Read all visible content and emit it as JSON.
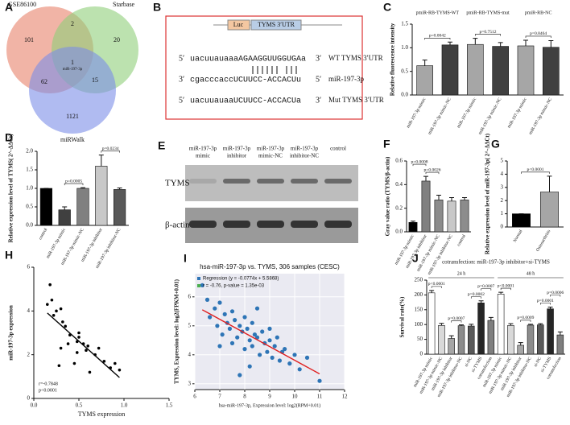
{
  "venn": {
    "panel": "A",
    "sets": [
      "GSE86100",
      "Starbase",
      "miRWalk"
    ],
    "regions": [
      101,
      2,
      20,
      1,
      62,
      15,
      1121
    ],
    "center_label": "miR-197-3p"
  },
  "sequence": {
    "panel": "B",
    "luc": "Luc",
    "utr": "TYMS 3′UTR",
    "rows": [
      {
        "left": "5′",
        "seq": "uacuuauaaaAGAAGGUUGGUGAa",
        "right": "3′",
        "name": "WT TYMS 3′UTR"
      },
      {
        "left": "3′",
        "seq": "cgacccaccUCUUCC-ACCACUu",
        "right": "5′",
        "name": "miR-197-3p"
      },
      {
        "left": "5′",
        "seq": "uacuuauaaUCUUCC-ACCACUa",
        "right": "3′",
        "name": "Mut TYMS 3′UTR"
      }
    ]
  },
  "blot": {
    "panel": "E",
    "lanes": [
      [
        "miR-197-3p",
        "mimic"
      ],
      [
        "miR-197-3p",
        "inhibitor"
      ],
      [
        "miR-197-3p",
        "mimic-NC"
      ],
      [
        "miR-197-3p",
        "inhibitor-NC"
      ],
      [
        "control"
      ]
    ],
    "rows": [
      "TYMS",
      "β-actin"
    ]
  },
  "chart_data": [
    {
      "type": "bar",
      "panel": "C",
      "y_label": "Relative fluorescence intensity",
      "group_labels": [
        "pmiR-RB-TYMS-WT",
        "pmiR-RB-TYMS-mut",
        "pmiR-RB-NC"
      ],
      "categories": [
        "miR-197-3p mimic",
        "miR-197-3p mimic-NC",
        "miR-197-3p mimic",
        "miR-197-3p mimic-NC",
        "miR-197-3p mimic",
        "miR-197-3p mimic-NC"
      ],
      "values": [
        0.62,
        1.06,
        1.07,
        1.03,
        1.04,
        1.01
      ],
      "errors": [
        0.12,
        0.06,
        0.13,
        0.08,
        0.12,
        0.14
      ],
      "colors": [
        "#a6a6a6",
        "#404040",
        "#a6a6a6",
        "#404040",
        "#a6a6a6",
        "#404040"
      ],
      "annotations": [
        "p=0.0042",
        "p=0.7512",
        "p=0.8464"
      ],
      "ylim": [
        0,
        1.5
      ],
      "yticks": [
        {
          "value": 0,
          "label": "0.0"
        },
        0.5,
        {
          "value": 1,
          "label": "1.0"
        },
        1.5
      ]
    },
    {
      "type": "bar",
      "panel": "D",
      "y_label": "Relative expression level of TYMS( 2^-ΔΔCt)",
      "categories": [
        "control",
        "miR-197-3p mimic",
        "miR-197-3p mimic-NC",
        "miR-197-3p inhibitor",
        "miR-197-3p inhibitor-NC"
      ],
      "values": [
        1.0,
        0.42,
        1.0,
        1.6,
        0.97
      ],
      "errors": [
        0,
        0.08,
        0.02,
        0.3,
        0.04
      ],
      "colors": [
        "#000000",
        "#404040",
        "#808080",
        "#c8c8c8",
        "#595959"
      ],
      "annotations": [
        "p=0.0005",
        "p=0.0234"
      ],
      "ylim": [
        0,
        2
      ],
      "yticks": [
        {
          "value": 0,
          "label": "0.0"
        },
        0.5,
        {
          "value": 1,
          "label": "1.0"
        },
        1.5,
        {
          "value": 2,
          "label": "2.0"
        }
      ]
    },
    {
      "type": "bar",
      "panel": "F",
      "y_label": "Gray value ratio (TYMS/β-actin)",
      "categories": [
        "miR-197-3p mimic",
        "miR-197-3p inhibitor",
        "miR-197-3p mimic-NC",
        "miR-197-3p inhibitor-NC",
        "control"
      ],
      "values": [
        0.08,
        0.43,
        0.27,
        0.26,
        0.27
      ],
      "errors": [
        0.01,
        0.04,
        0.04,
        0.03,
        0.02
      ],
      "colors": [
        "#000000",
        "#808080",
        "#8c8c8c",
        "#c8c8c8",
        "#8c8c8c"
      ],
      "annotations": [
        "p=0.0008",
        "p=0.0026"
      ],
      "ylim": [
        0,
        0.6
      ],
      "yticks": [
        {
          "value": 0,
          "label": "0.0"
        },
        0.2,
        0.4,
        0.6
      ]
    },
    {
      "type": "bar",
      "panel": "G",
      "y_label": "Relative expression level of miR-197-3p( 2^-ΔΔCt)",
      "categories": [
        "Normal",
        "Osteoarthritis"
      ],
      "values": [
        1.0,
        2.65
      ],
      "errors": [
        0,
        1.2
      ],
      "colors": [
        "#000000",
        "#a6a6a6"
      ],
      "annotations": [
        "p<0.0001"
      ],
      "ylim": [
        0,
        5
      ],
      "yticks": [
        0,
        1,
        2,
        3,
        4,
        5
      ]
    },
    {
      "type": "scatter",
      "panel": "H",
      "x_label": "TYMS expression",
      "y_label": "miR-197-3p expression",
      "color": "#000000",
      "line_color": "#000000",
      "x": [
        0.15,
        0.18,
        0.2,
        0.22,
        0.25,
        0.28,
        0.3,
        0.32,
        0.35,
        0.38,
        0.4,
        0.45,
        0.48,
        0.5,
        0.5,
        0.55,
        0.58,
        0.6,
        0.62,
        0.68,
        0.72,
        0.78,
        0.85,
        0.9,
        0.95,
        0.3,
        0.48
      ],
      "y": [
        4.3,
        5.2,
        4.5,
        3.8,
        4.0,
        1.5,
        4.1,
        3.5,
        3.3,
        2.5,
        2.9,
        1.6,
        2.6,
        2.8,
        3.0,
        2.5,
        2.2,
        2.4,
        1.2,
        2.0,
        2.3,
        1.7,
        1.4,
        1.6,
        1.3,
        2.3,
        2.1
      ],
      "annotations": [
        "r=-0.7848",
        "p<0.0001"
      ],
      "xlim": [
        0,
        1.5
      ],
      "xticks": [
        {
          "value": 0,
          "label": "0.0"
        },
        0.5,
        {
          "value": 1,
          "label": "1.0"
        },
        1.5
      ],
      "ylim": [
        0,
        6
      ],
      "yticks": [
        0,
        2,
        4,
        6
      ],
      "grid": false
    },
    {
      "type": "scatter",
      "panel": "I",
      "title": "hsa-miR-197-3p vs. TYMS, 306 samples (CESC)",
      "x_label": "hsa-miR-197-3p, Expression level: log2(RPM+0.01)",
      "y_label": "TYMS, Expression level: log2(FPKM+0.01)",
      "color": "#2e75b6",
      "line_color": "#e02020",
      "x": [
        6.3,
        6.5,
        6.6,
        6.8,
        6.9,
        7.0,
        7.1,
        7.2,
        7.3,
        7.4,
        7.5,
        7.5,
        7.6,
        7.7,
        7.8,
        7.9,
        8.0,
        8.0,
        8.1,
        8.2,
        8.3,
        8.3,
        8.4,
        8.5,
        8.6,
        8.7,
        8.8,
        8.9,
        9.0,
        9.1,
        9.2,
        9.3,
        9.4,
        9.5,
        9.6,
        9.8,
        10.0,
        10.2,
        10.5,
        11.0,
        7.0,
        7.8,
        8.5,
        9.0,
        8.2
      ],
      "y": [
        6.4,
        5.9,
        5.3,
        5.6,
        5.0,
        5.8,
        4.7,
        5.4,
        5.1,
        4.9,
        5.5,
        4.4,
        5.2,
        4.6,
        5.0,
        4.8,
        5.3,
        4.2,
        4.9,
        4.5,
        5.1,
        4.3,
        4.7,
        4.6,
        4.0,
        4.8,
        4.4,
        4.1,
        4.5,
        3.9,
        4.3,
        4.6,
        3.8,
        4.1,
        4.2,
        3.7,
        4.0,
        3.5,
        3.9,
        3.1,
        4.3,
        3.3,
        5.6,
        4.9,
        3.6
      ],
      "legend": [
        {
          "label": "Regression (y = -0.0774x + 5.5868)",
          "color": "#2e75b6"
        },
        {
          "label": "r = -0.76, p-value = 1.35e-03",
          "color": "#4caf50"
        }
      ],
      "xlim": [
        6,
        12
      ],
      "xticks": [
        6,
        7,
        8,
        9,
        10,
        11,
        12
      ],
      "ylim": [
        2.8,
        6.8
      ],
      "yticks": [
        3,
        4,
        5,
        6
      ],
      "grid": true
    },
    {
      "type": "bar",
      "panel": "J",
      "title": "cotransfection: miR-197-3p inhibitor+si-TYMS",
      "y_label": "Survival rate(%)",
      "group_labels": [
        "24 h",
        "48 h"
      ],
      "categories": [
        "miR-197-3p mimic",
        "miR-197-3p mimic-NC",
        "miR-197-3p inhibitor",
        "miR-197-3p inhibitor-NC",
        "si-NC",
        "si-TYMS",
        "cotransfection",
        "miR-197-3p mimic",
        "miR-197-3p mimic-NC",
        "miR-197-3p inhibitor",
        "miR-197-3p inhibitor-NC",
        "si-NC",
        "si-TYMS",
        "cotransfection"
      ],
      "values": [
        207,
        97,
        53,
        96,
        95,
        173,
        114,
        203,
        97,
        30,
        98,
        99,
        153,
        65
      ],
      "errors": [
        8,
        7,
        9,
        3,
        6,
        7,
        10,
        6,
        6,
        9,
        3,
        4,
        6,
        10
      ],
      "colors": [
        "#ffffff",
        "#d9d9d9",
        "#a6a6a6",
        "#8c8c8c",
        "#595959",
        "#262626",
        "#7f7f7f",
        "#ffffff",
        "#d9d9d9",
        "#a6a6a6",
        "#8c8c8c",
        "#595959",
        "#262626",
        "#7f7f7f"
      ],
      "annotations": [
        "p<0.0001",
        "p=0.0007",
        "p=0.0002",
        "p=0.0007",
        "p<0.0001",
        "p=0.0009",
        "p=0.0001",
        "p=0.0006"
      ],
      "ylim": [
        0,
        250
      ],
      "yticks": [
        0,
        50,
        100,
        150,
        200,
        250
      ]
    }
  ]
}
